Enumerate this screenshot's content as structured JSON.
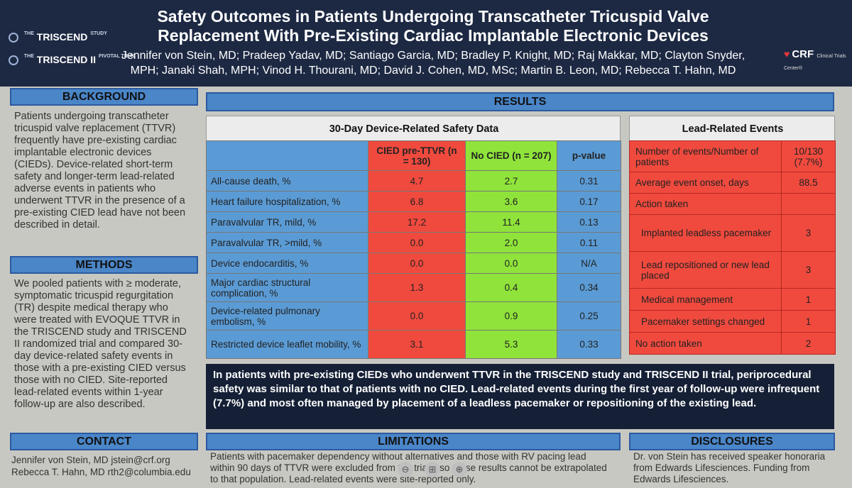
{
  "header": {
    "title_line1": "Safety Outcomes in Patients Undergoing Transcatheter Tricuspid Valve",
    "title_line2": "Replacement With Pre-Existing Cardiac Implantable Electronic Devices",
    "authors_line1": "Jennifer von Stein, MD; Pradeep Yadav, MD; Santiago Garcia, MD; Bradley P. Knight, MD; Raj Makkar, MD; Clayton Snyder,",
    "authors_line2": "MPH; Janaki Shah, MPH; Vinod H. Thourani, MD; David J. Cohen, MD, MSc; Martin B. Leon, MD; Rebecca T. Hahn, MD",
    "logo1_the": "THE",
    "logo1_name": "TRISCEND",
    "logo1_sub": "STUDY",
    "logo2_the": "THE",
    "logo2_name": "TRISCEND II",
    "logo2_sub": "PIVOTAL TRIAL",
    "crf_name": "CRF",
    "crf_sub": "Clinical Trials Center®"
  },
  "background": {
    "heading": "BACKGROUND",
    "text": "Patients undergoing transcatheter tricuspid valve replacement (TTVR) frequently have pre-existing cardiac implantable electronic devices (CIEDs). Device-related short-term safety and longer-term lead-related adverse events in patients who underwent TTVR in the presence of a pre-existing CIED lead have not been described in detail."
  },
  "methods": {
    "heading": "METHODS",
    "text": "We pooled patients with ≥ moderate, symptomatic tricuspid regurgitation (TR) despite medical therapy who were treated with EVOQUE TTVR in the TRISCEND study and TRISCEND II randomized trial and compared 30-day device-related safety events in those with a pre-existing CIED versus those with no CIED. Site-reported lead-related events within 1-year follow-up are also described."
  },
  "contact": {
    "heading": "CONTACT",
    "line1": "Jennifer von Stein, MD jstein@crf.org",
    "line2": "Rebecca T. Hahn, MD rth2@columbia.edu"
  },
  "results": {
    "heading": "RESULTS",
    "safety_title": "30-Day Device-Related Safety Data",
    "col_cied": "CIED pre-TTVR (n = 130)",
    "col_nocied": "No CIED (n = 207)",
    "col_p": "p-value",
    "rows": [
      {
        "label": "All-cause death, %",
        "cied": "4.7",
        "nocied": "2.7",
        "p": "0.31"
      },
      {
        "label": "Heart failure hospitalization, %",
        "cied": "6.8",
        "nocied": "3.6",
        "p": "0.17"
      },
      {
        "label": "Paravalvular TR, mild, %",
        "cied": "17.2",
        "nocied": "11.4",
        "p": "0.13"
      },
      {
        "label": "Paravalvular TR, >mild, %",
        "cied": "0.0",
        "nocied": "2.0",
        "p": "0.11"
      },
      {
        "label": "Device endocarditis, %",
        "cied": "0.0",
        "nocied": "0.0",
        "p": "N/A"
      },
      {
        "label": "Major cardiac structural complication, %",
        "cied": "1.3",
        "nocied": "0.4",
        "p": "0.34"
      },
      {
        "label": "Device-related pulmonary embolism, %",
        "cied": "0.0",
        "nocied": "0.9",
        "p": "0.25"
      },
      {
        "label": "Restricted device leaflet mobility, %",
        "cied": "3.1",
        "nocied": "5.3",
        "p": "0.33"
      }
    ],
    "lead_title": "Lead-Related Events",
    "lead_rows": [
      {
        "label": "Number of events/Number of patients",
        "value": "10/130 (7.7%)"
      },
      {
        "label": "Average event onset, days",
        "value": "88.5"
      },
      {
        "label": "Action taken",
        "value": ""
      },
      {
        "label": "Implanted leadless pacemaker",
        "value": "3"
      },
      {
        "label": "Lead repositioned or new lead placed",
        "value": "3"
      },
      {
        "label": "Medical management",
        "value": "1"
      },
      {
        "label": "Pacemaker settings changed",
        "value": "1"
      },
      {
        "label": "No action taken",
        "value": "2"
      }
    ],
    "conclusion": "In patients with pre-existing CIEDs who underwent TTVR in the TRISCEND study and TRISCEND II trial, periprocedural safety was similar to that of patients with no CIED. Lead-related events during the first year of follow-up were infrequent (7.7%) and most often managed by placement of a leadless pacemaker or repositioning of the existing lead."
  },
  "limitations": {
    "heading": "LIMITATIONS",
    "line1": "Patients with pacemaker dependency without alternatives and those with RV pacing lead",
    "line2": "within 90 days of TTVR were excluded from the trials, so these results cannot be extrapolated",
    "line3": "to that population. Lead-related events were site-reported only."
  },
  "disclosures": {
    "heading": "DISCLOSURES",
    "line1": "Dr. von Stein has received speaker honoraria",
    "line2": "from Edwards Lifesciences. Funding from",
    "line3": "Edwards Lifesciences."
  },
  "viewer_controls": [
    {
      "icon": "zoom-out-icon",
      "glyph": "⊖"
    },
    {
      "icon": "fit-icon",
      "glyph": "⊞"
    },
    {
      "icon": "zoom-in-icon",
      "glyph": "⊕"
    }
  ]
}
